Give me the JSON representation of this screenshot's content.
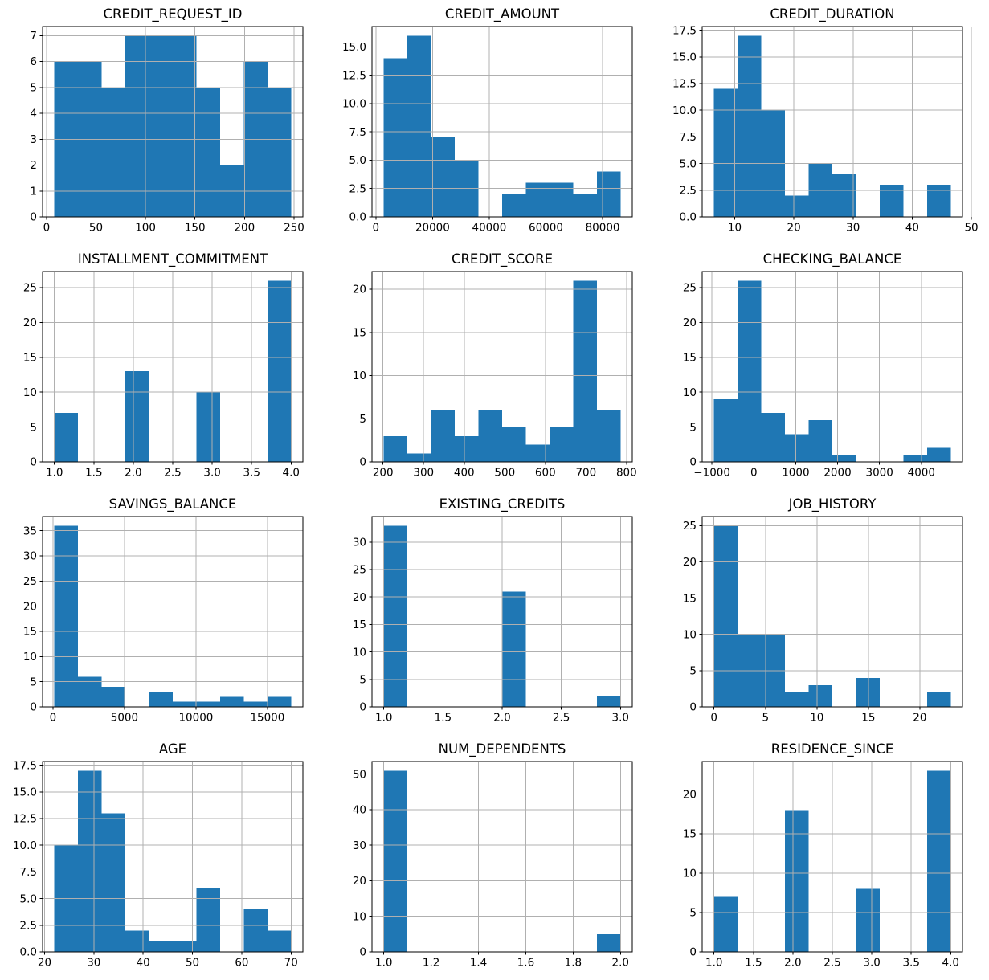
{
  "figure": {
    "kind": "histogram-grid",
    "rows": 4,
    "cols": 3,
    "background_color": "#ffffff",
    "bar_color": "#1f77b4",
    "grid_color": "#b0b0b0",
    "spine_color": "#000000",
    "text_color": "#000000",
    "grid": "on",
    "legend": "none"
  },
  "chart_data": [
    {
      "type": "bar",
      "subtype": "histogram",
      "title": "CREDIT_REQUEST_ID",
      "bin_start": 8,
      "bin_end": 247,
      "counts": [
        6,
        6,
        5,
        7,
        7,
        7,
        5,
        2,
        6,
        5
      ],
      "x_tick_values": [
        0,
        50,
        100,
        150,
        200,
        250
      ],
      "x_tick_labels": [
        "0",
        "50",
        "100",
        "150",
        "200",
        "250"
      ],
      "y_tick_values": [
        0,
        1,
        2,
        3,
        4,
        5,
        6,
        7
      ],
      "y_tick_labels": [
        "0",
        "1",
        "2",
        "3",
        "4",
        "5",
        "6",
        "7"
      ],
      "xlim": [
        -3.95,
        258.95
      ],
      "ylim": [
        0,
        7.35
      ]
    },
    {
      "type": "bar",
      "subtype": "histogram",
      "title": "CREDIT_AMOUNT",
      "bin_start": 2800,
      "bin_end": 86300,
      "counts": [
        14,
        16,
        7,
        5,
        0,
        2,
        3,
        3,
        2,
        4
      ],
      "x_tick_values": [
        0,
        20000,
        40000,
        60000,
        80000
      ],
      "x_tick_labels": [
        "0",
        "20000",
        "40000",
        "60000",
        "80000"
      ],
      "y_tick_values": [
        0,
        2.5,
        5,
        7.5,
        10,
        12.5,
        15
      ],
      "y_tick_labels": [
        "0.0",
        "2.5",
        "5.0",
        "7.5",
        "10.0",
        "12.5",
        "15.0"
      ],
      "xlim": [
        -1375,
        90475
      ],
      "ylim": [
        0,
        16.8
      ]
    },
    {
      "type": "bar",
      "subtype": "histogram",
      "title": "CREDIT_DURATION",
      "bin_start": 6.5,
      "bin_end": 46.5,
      "counts": [
        12,
        17,
        10,
        2,
        5,
        4,
        0,
        3,
        0,
        3
      ],
      "x_tick_values": [
        10,
        20,
        30,
        40,
        50
      ],
      "x_tick_labels": [
        "10",
        "20",
        "30",
        "40",
        "50"
      ],
      "y_tick_values": [
        0,
        2.5,
        5,
        7.5,
        10,
        12.5,
        15,
        17.5
      ],
      "y_tick_labels": [
        "0.0",
        "2.5",
        "5.0",
        "7.5",
        "10.0",
        "12.5",
        "15.0",
        "17.5"
      ],
      "xlim": [
        4.5,
        48.5
      ],
      "ylim": [
        0,
        17.85
      ]
    },
    {
      "type": "bar",
      "subtype": "histogram",
      "title": "INSTALLMENT_COMMITMENT",
      "bin_start": 1,
      "bin_end": 4,
      "counts": [
        7,
        0,
        0,
        13,
        0,
        0,
        10,
        0,
        0,
        26
      ],
      "x_tick_values": [
        1,
        1.5,
        2,
        2.5,
        3,
        3.5,
        4
      ],
      "x_tick_labels": [
        "1.0",
        "1.5",
        "2.0",
        "2.5",
        "3.0",
        "3.5",
        "4.0"
      ],
      "y_tick_values": [
        0,
        5,
        10,
        15,
        20,
        25
      ],
      "y_tick_labels": [
        "0",
        "5",
        "10",
        "15",
        "20",
        "25"
      ],
      "xlim": [
        0.85,
        4.15
      ],
      "ylim": [
        0,
        27.3
      ]
    },
    {
      "type": "bar",
      "subtype": "histogram",
      "title": "CREDIT_SCORE",
      "bin_start": 202,
      "bin_end": 785,
      "counts": [
        3,
        1,
        6,
        3,
        6,
        4,
        2,
        4,
        21,
        6
      ],
      "x_tick_values": [
        200,
        300,
        400,
        500,
        600,
        700,
        800
      ],
      "x_tick_labels": [
        "200",
        "300",
        "400",
        "500",
        "600",
        "700",
        "800"
      ],
      "y_tick_values": [
        0,
        5,
        10,
        15,
        20
      ],
      "y_tick_labels": [
        "0",
        "5",
        "10",
        "15",
        "20"
      ],
      "xlim": [
        172.85,
        814.15
      ],
      "ylim": [
        0,
        22.05
      ]
    },
    {
      "type": "bar",
      "subtype": "histogram",
      "title": "CHECKING_BALANCE",
      "bin_start": -950,
      "bin_end": 4700,
      "counts": [
        9,
        26,
        7,
        4,
        6,
        1,
        0,
        0,
        1,
        2
      ],
      "x_tick_values": [
        -1000,
        0,
        1000,
        2000,
        3000,
        4000
      ],
      "x_tick_labels": [
        "−1000",
        "0",
        "1000",
        "2000",
        "3000",
        "4000"
      ],
      "y_tick_values": [
        0,
        5,
        10,
        15,
        20,
        25
      ],
      "y_tick_labels": [
        "0",
        "5",
        "10",
        "15",
        "20",
        "25"
      ],
      "xlim": [
        -1232.5,
        4982.5
      ],
      "ylim": [
        0,
        27.3
      ]
    },
    {
      "type": "bar",
      "subtype": "histogram",
      "title": "SAVINGS_BALANCE",
      "bin_start": 100,
      "bin_end": 16650,
      "counts": [
        36,
        6,
        4,
        0,
        3,
        1,
        1,
        2,
        1,
        2
      ],
      "x_tick_values": [
        0,
        5000,
        10000,
        15000
      ],
      "x_tick_labels": [
        "0",
        "5000",
        "10000",
        "15000"
      ],
      "y_tick_values": [
        0,
        5,
        10,
        15,
        20,
        25,
        30,
        35
      ],
      "y_tick_labels": [
        "0",
        "5",
        "10",
        "15",
        "20",
        "25",
        "30",
        "35"
      ],
      "xlim": [
        -727.5,
        17477.5
      ],
      "ylim": [
        0,
        37.8
      ]
    },
    {
      "type": "bar",
      "subtype": "histogram",
      "title": "EXISTING_CREDITS",
      "bin_start": 1,
      "bin_end": 3,
      "counts": [
        33,
        0,
        0,
        0,
        0,
        21,
        0,
        0,
        0,
        2
      ],
      "x_tick_values": [
        1,
        1.5,
        2,
        2.5,
        3
      ],
      "x_tick_labels": [
        "1.0",
        "1.5",
        "2.0",
        "2.5",
        "3.0"
      ],
      "y_tick_values": [
        0,
        5,
        10,
        15,
        20,
        25,
        30
      ],
      "y_tick_labels": [
        "0",
        "5",
        "10",
        "15",
        "20",
        "25",
        "30"
      ],
      "xlim": [
        0.9,
        3.1
      ],
      "ylim": [
        0,
        34.65
      ]
    },
    {
      "type": "bar",
      "subtype": "histogram",
      "title": "JOB_HISTORY",
      "bin_start": 0,
      "bin_end": 23,
      "counts": [
        25,
        10,
        10,
        2,
        3,
        0,
        4,
        0,
        0,
        2
      ],
      "x_tick_values": [
        0,
        5,
        10,
        15,
        20
      ],
      "x_tick_labels": [
        "0",
        "5",
        "10",
        "15",
        "20"
      ],
      "y_tick_values": [
        0,
        5,
        10,
        15,
        20,
        25
      ],
      "y_tick_labels": [
        "0",
        "5",
        "10",
        "15",
        "20",
        "25"
      ],
      "xlim": [
        -1.15,
        24.15
      ],
      "ylim": [
        0,
        26.25
      ]
    },
    {
      "type": "bar",
      "subtype": "histogram",
      "title": "AGE",
      "bin_start": 22,
      "bin_end": 70,
      "counts": [
        10,
        17,
        13,
        2,
        1,
        1,
        6,
        0,
        4,
        2
      ],
      "x_tick_values": [
        20,
        30,
        40,
        50,
        60,
        70
      ],
      "x_tick_labels": [
        "20",
        "30",
        "40",
        "50",
        "60",
        "70"
      ],
      "y_tick_values": [
        0,
        2.5,
        5,
        7.5,
        10,
        12.5,
        15,
        17.5
      ],
      "y_tick_labels": [
        "0.0",
        "2.5",
        "5.0",
        "7.5",
        "10.0",
        "12.5",
        "15.0",
        "17.5"
      ],
      "xlim": [
        19.6,
        72.4
      ],
      "ylim": [
        0,
        17.85
      ]
    },
    {
      "type": "bar",
      "subtype": "histogram",
      "title": "NUM_DEPENDENTS",
      "bin_start": 1,
      "bin_end": 2,
      "counts": [
        51,
        0,
        0,
        0,
        0,
        0,
        0,
        0,
        0,
        5
      ],
      "x_tick_values": [
        1,
        1.2,
        1.4,
        1.6,
        1.8,
        2
      ],
      "x_tick_labels": [
        "1.0",
        "1.2",
        "1.4",
        "1.6",
        "1.8",
        "2.0"
      ],
      "y_tick_values": [
        0,
        10,
        20,
        30,
        40,
        50
      ],
      "y_tick_labels": [
        "0",
        "10",
        "20",
        "30",
        "40",
        "50"
      ],
      "xlim": [
        0.95,
        2.05
      ],
      "ylim": [
        0,
        53.55
      ]
    },
    {
      "type": "bar",
      "subtype": "histogram",
      "title": "RESIDENCE_SINCE",
      "bin_start": 1,
      "bin_end": 4,
      "counts": [
        7,
        0,
        0,
        18,
        0,
        0,
        8,
        0,
        0,
        23
      ],
      "x_tick_values": [
        1,
        1.5,
        2,
        2.5,
        3,
        3.5,
        4
      ],
      "x_tick_labels": [
        "1.0",
        "1.5",
        "2.0",
        "2.5",
        "3.0",
        "3.5",
        "4.0"
      ],
      "y_tick_values": [
        0,
        5,
        10,
        15,
        20
      ],
      "y_tick_labels": [
        "0",
        "5",
        "10",
        "15",
        "20"
      ],
      "xlim": [
        0.85,
        4.15
      ],
      "ylim": [
        0,
        24.15
      ]
    }
  ]
}
